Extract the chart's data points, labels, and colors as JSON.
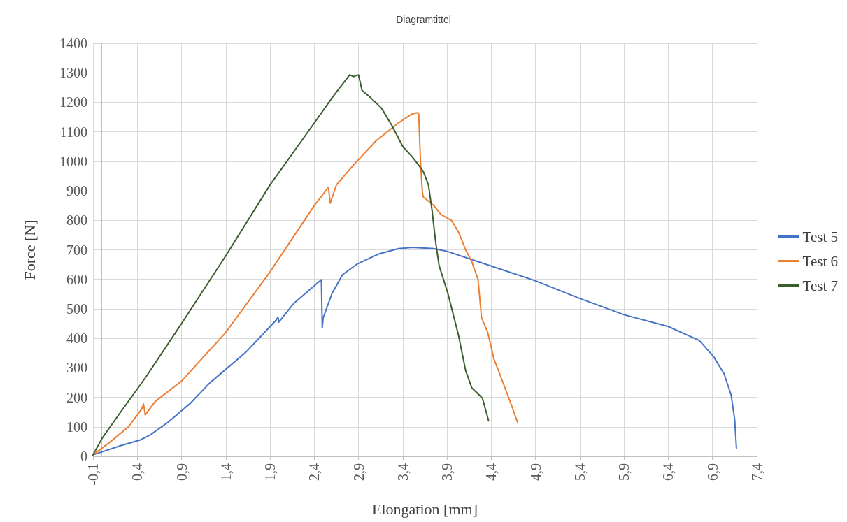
{
  "chart_data": {
    "type": "line",
    "title": "Diagramtittel",
    "xlabel": "Elongation [mm]",
    "ylabel": "Force [N]",
    "xlim": [
      -0.1,
      7.4
    ],
    "xticks": [
      {
        "value": -0.1,
        "label": "-0,1"
      },
      {
        "value": 0.4,
        "label": "0,4"
      },
      {
        "value": 0.9,
        "label": "0,9"
      },
      {
        "value": 1.4,
        "label": "1,4"
      },
      {
        "value": 1.9,
        "label": "1,9"
      },
      {
        "value": 2.4,
        "label": "2,4"
      },
      {
        "value": 2.9,
        "label": "2,9"
      },
      {
        "value": 3.4,
        "label": "3,4"
      },
      {
        "value": 3.9,
        "label": "3,9"
      },
      {
        "value": 4.4,
        "label": "4,4"
      },
      {
        "value": 4.9,
        "label": "4,9"
      },
      {
        "value": 5.4,
        "label": "5,4"
      },
      {
        "value": 5.9,
        "label": "5,9"
      },
      {
        "value": 6.4,
        "label": "6,4"
      },
      {
        "value": 6.9,
        "label": "6,9"
      },
      {
        "value": 7.4,
        "label": "7,4"
      }
    ],
    "ylim": [
      0,
      1400
    ],
    "yticks": [
      0,
      100,
      200,
      300,
      400,
      500,
      600,
      700,
      800,
      900,
      1000,
      1100,
      1200,
      1300,
      1400
    ],
    "grid": true,
    "legend": "right",
    "marker": "none",
    "line_style": "solid",
    "series": [
      {
        "name": "Test 5",
        "color": "#4472c4",
        "x": [
          -0.1,
          0.23,
          0.43,
          0.55,
          0.75,
          0.98,
          1.0,
          1.22,
          1.62,
          1.97,
          1.99,
          2.0,
          2.17,
          2.48,
          2.49,
          2.5,
          2.6,
          2.72,
          2.88,
          3.12,
          3.35,
          3.51,
          3.75,
          3.9,
          4.4,
          4.9,
          5.4,
          5.9,
          6.4,
          6.75,
          6.91,
          7.03,
          7.11,
          7.15,
          7.17
        ],
        "values": [
          5,
          38,
          55,
          73,
          116,
          175,
          180,
          249,
          351,
          462,
          472,
          455,
          519,
          599,
          436,
          469,
          552,
          616,
          651,
          685,
          704,
          708,
          704,
          695,
          645,
          595,
          535,
          480,
          440,
          393,
          339,
          280,
          208,
          126,
          28
        ]
      },
      {
        "name": "Test 6",
        "color": "#ed7d31",
        "x": [
          -0.1,
          0.1,
          0.3,
          0.45,
          0.47,
          0.49,
          0.6,
          0.9,
          1.4,
          1.9,
          2.4,
          2.56,
          2.58,
          2.65,
          2.85,
          3.1,
          3.35,
          3.5,
          3.56,
          3.58,
          3.6,
          3.62,
          3.63,
          3.75,
          3.83,
          3.95,
          4.03,
          4.11,
          4.18,
          4.25,
          4.29,
          4.36,
          4.43,
          4.52,
          4.62,
          4.7
        ],
        "values": [
          5,
          50,
          100,
          160,
          178,
          140,
          185,
          255,
          420,
          625,
          850,
          912,
          858,
          920,
          990,
          1070,
          1130,
          1160,
          1165,
          1160,
          1000,
          900,
          880,
          850,
          820,
          800,
          760,
          700,
          660,
          600,
          470,
          420,
          330,
          260,
          180,
          113
        ]
      },
      {
        "name": "Test 7",
        "color": "#3b5e2b",
        "x": [
          -0.1,
          0.0,
          0.2,
          0.5,
          0.9,
          1.4,
          1.9,
          2.4,
          2.6,
          2.8,
          2.84,
          2.9,
          2.94,
          3.04,
          3.16,
          3.28,
          3.4,
          3.51,
          3.63,
          3.69,
          3.73,
          3.77,
          3.81,
          3.91,
          4.03,
          4.11,
          4.18,
          4.3,
          4.37
        ],
        "values": [
          5,
          60,
          145,
          270,
          450,
          680,
          920,
          1130,
          1215,
          1293,
          1287,
          1293,
          1240,
          1215,
          1180,
          1120,
          1050,
          1014,
          967,
          920,
          836,
          730,
          647,
          552,
          410,
          291,
          232,
          197,
          120
        ]
      }
    ]
  }
}
